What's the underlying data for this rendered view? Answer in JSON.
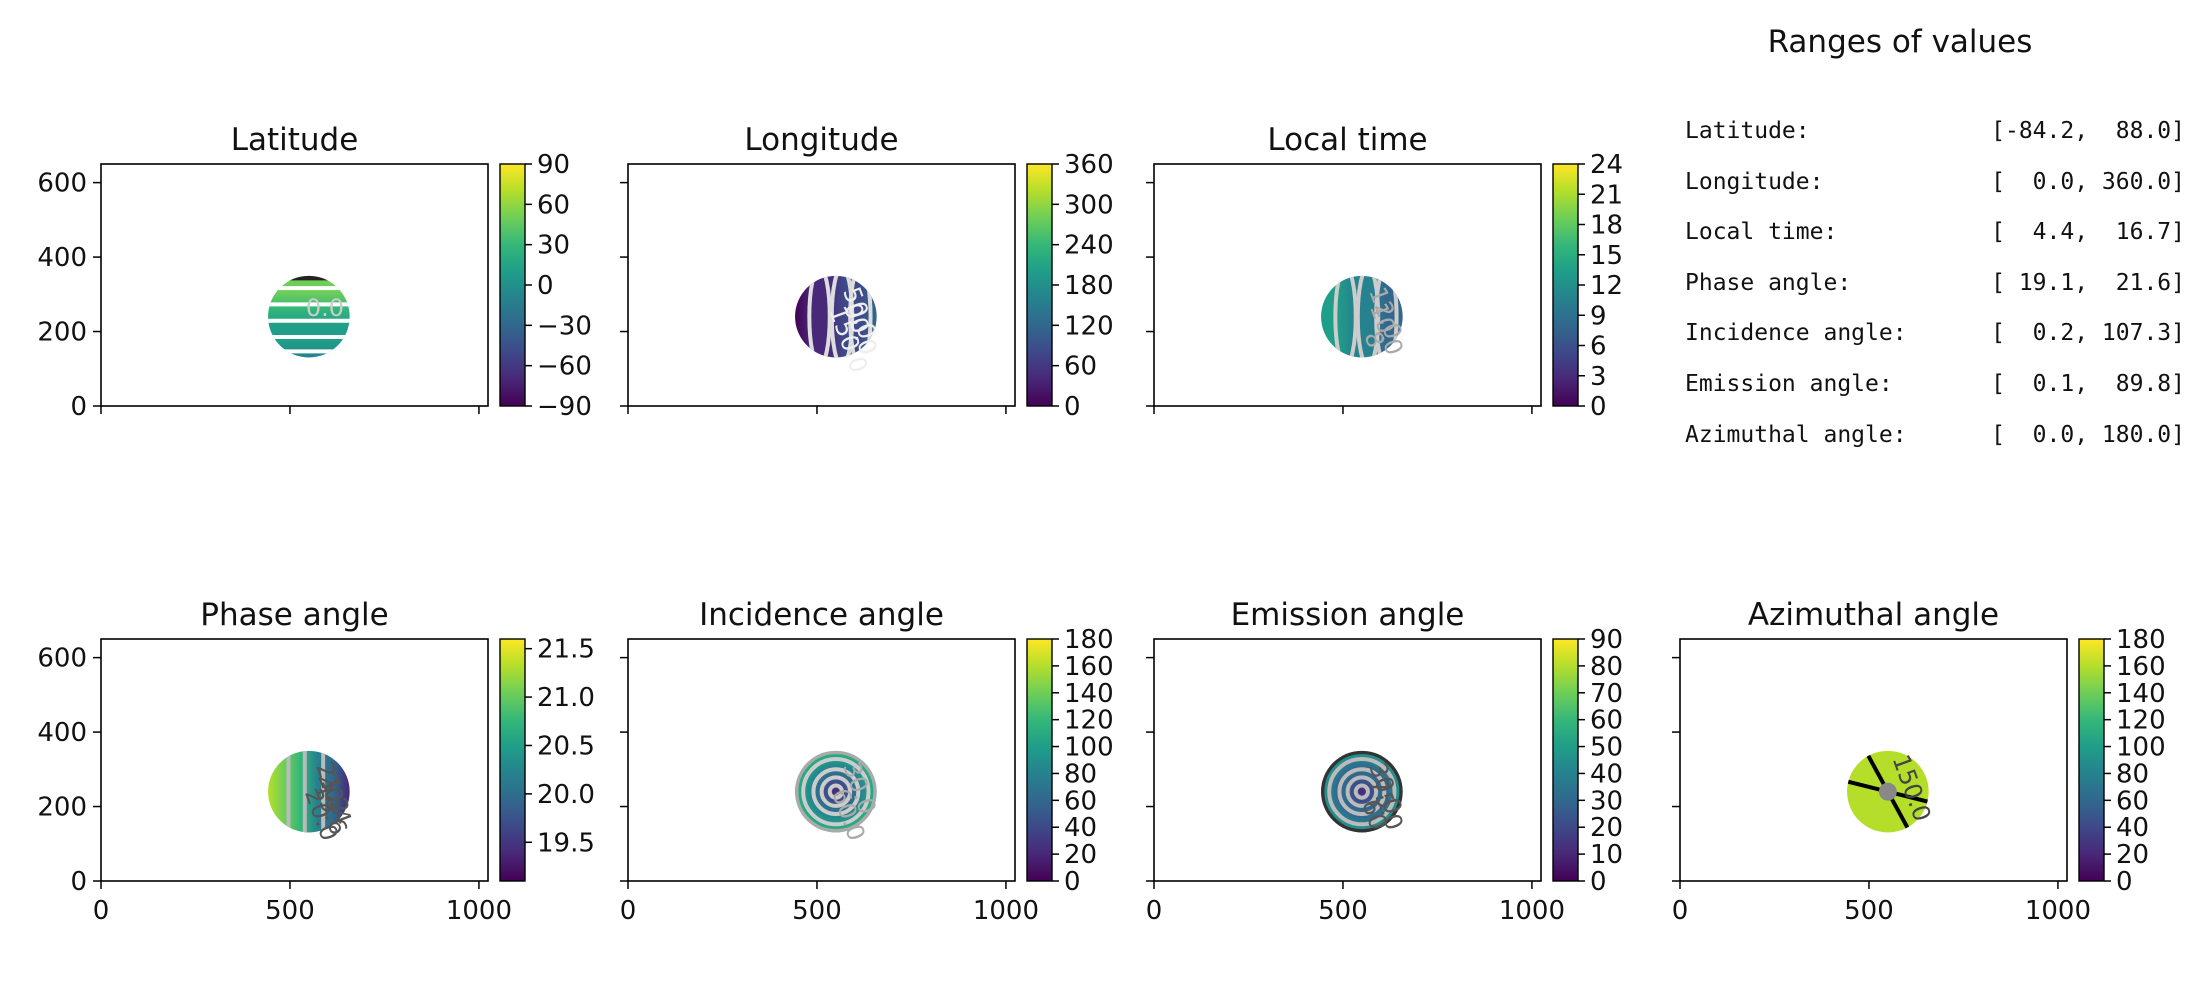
{
  "chart_data": [
    {
      "type": "heatmap",
      "title": "Latitude",
      "xlim": [
        0,
        1024
      ],
      "ylim": [
        0,
        650
      ],
      "xticks": [
        "",
        "",
        ""
      ],
      "yticks": [
        "0",
        "200",
        "400",
        "600"
      ],
      "colorbar": {
        "range": [
          -90,
          90
        ],
        "ticks": [
          "90",
          "60",
          "30",
          "0",
          "−30",
          "−60",
          "−90"
        ]
      },
      "disc": {
        "cx": 550,
        "cy": 240,
        "r": 108
      },
      "contour_labels": [
        "0.0"
      ]
    },
    {
      "type": "heatmap",
      "title": "Longitude",
      "xlim": [
        0,
        1024
      ],
      "ylim": [
        0,
        650
      ],
      "xticks": [
        "",
        "",
        ""
      ],
      "yticks": [
        "",
        "",
        "",
        ""
      ],
      "colorbar": {
        "range": [
          0,
          360
        ],
        "ticks": [
          "360",
          "300",
          "240",
          "180",
          "120",
          "60",
          "0"
        ]
      },
      "disc": {
        "cx": 550,
        "cy": 240,
        "r": 108
      },
      "contour_labels": [
        "50.0",
        "00.0",
        "150.0"
      ]
    },
    {
      "type": "heatmap",
      "title": "Local time",
      "xlim": [
        0,
        1024
      ],
      "ylim": [
        0,
        650
      ],
      "xticks": [
        "",
        "",
        ""
      ],
      "yticks": [
        "",
        "",
        "",
        ""
      ],
      "colorbar": {
        "range": [
          0,
          24
        ],
        "ticks": [
          "24",
          "21",
          "18",
          "15",
          "12",
          "9",
          "6",
          "3",
          "0"
        ]
      },
      "disc": {
        "cx": 550,
        "cy": 240,
        "r": 108
      },
      "contour_labels": [
        "12.0",
        "10.0",
        "8"
      ]
    },
    {
      "type": "heatmap",
      "title": "Phase angle",
      "xlim": [
        0,
        1024
      ],
      "ylim": [
        0,
        650
      ],
      "xticks": [
        "0",
        "500",
        "1000"
      ],
      "yticks": [
        "0",
        "200",
        "400",
        "600"
      ],
      "colorbar": {
        "range": [
          19.1,
          21.6
        ],
        "ticks": [
          "21.5",
          "21.0",
          "20.5",
          "20.0",
          "19.5"
        ]
      },
      "disc": {
        "cx": 550,
        "cy": 240,
        "r": 108
      },
      "contour_labels": [
        "21.2",
        "20.4",
        "19.6",
        "20.0"
      ]
    },
    {
      "type": "heatmap",
      "title": "Incidence angle",
      "xlim": [
        0,
        1024
      ],
      "ylim": [
        0,
        650
      ],
      "xticks": [
        "0",
        "500",
        "1000"
      ],
      "yticks": [
        "",
        "",
        "",
        ""
      ],
      "colorbar": {
        "range": [
          0,
          180
        ],
        "ticks": [
          "180",
          "160",
          "140",
          "120",
          "100",
          "80",
          "60",
          "40",
          "20",
          "0"
        ]
      },
      "disc": {
        "cx": 550,
        "cy": 240,
        "r": 108
      },
      "contour_labels": [
        "30.0",
        "60.0"
      ]
    },
    {
      "type": "heatmap",
      "title": "Emission angle",
      "xlim": [
        0,
        1024
      ],
      "ylim": [
        0,
        650
      ],
      "xticks": [
        "0",
        "500",
        "1000"
      ],
      "yticks": [
        "",
        "",
        "",
        ""
      ],
      "colorbar": {
        "range": [
          0,
          90
        ],
        "ticks": [
          "90",
          "80",
          "70",
          "60",
          "50",
          "40",
          "30",
          "20",
          "10",
          "0"
        ]
      },
      "disc": {
        "cx": 550,
        "cy": 240,
        "r": 108
      },
      "contour_labels": [
        "30.0",
        "75.0",
        "60"
      ]
    },
    {
      "type": "heatmap",
      "title": "Azimuthal angle",
      "xlim": [
        0,
        1024
      ],
      "ylim": [
        0,
        650
      ],
      "xticks": [
        "0",
        "500",
        "1000"
      ],
      "yticks": [
        "",
        "",
        "",
        ""
      ],
      "colorbar": {
        "range": [
          0,
          180
        ],
        "ticks": [
          "180",
          "160",
          "140",
          "120",
          "100",
          "80",
          "60",
          "40",
          "20",
          "0"
        ]
      },
      "disc": {
        "cx": 550,
        "cy": 240,
        "r": 108
      },
      "contour_labels": [
        "150.0"
      ]
    }
  ],
  "ranges": {
    "title": "Ranges of values",
    "rows": [
      {
        "label": "Latitude:",
        "value": "[-84.2,  88.0]"
      },
      {
        "label": "Longitude:",
        "value": "[  0.0, 360.0]"
      },
      {
        "label": "Local time:",
        "value": "[  4.4,  16.7]"
      },
      {
        "label": "Phase angle:",
        "value": "[ 19.1,  21.6]"
      },
      {
        "label": "Incidence angle:",
        "value": "[  0.2, 107.3]"
      },
      {
        "label": "Emission angle:",
        "value": "[  0.1,  89.8]"
      },
      {
        "label": "Azimuthal angle:",
        "value": "[  0.0, 180.0]"
      }
    ]
  }
}
